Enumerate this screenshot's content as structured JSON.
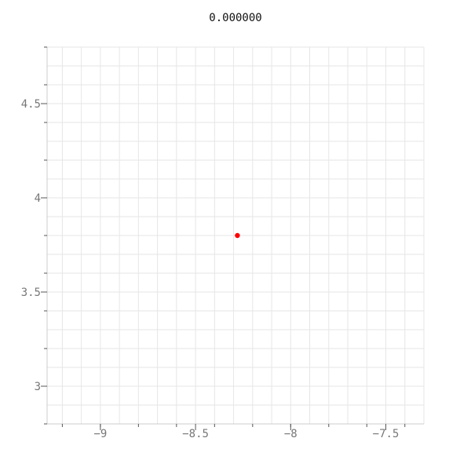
{
  "chart_data": {
    "type": "scatter",
    "title": "0.000000",
    "xlabel": "",
    "ylabel": "",
    "xlim": [
      -9.28,
      -7.3
    ],
    "ylim": [
      2.8,
      4.8
    ],
    "xticks": [
      -9,
      -8.5,
      -8,
      -7.5
    ],
    "xtick_labels": [
      "−9",
      "−8.5",
      "−8",
      "−7.5"
    ],
    "yticks": [
      3,
      3.5,
      4,
      4.5
    ],
    "ytick_labels": [
      "3",
      "3.5",
      "4",
      "4.5"
    ],
    "grid": true,
    "series": [
      {
        "color": "#ff0000",
        "points": [
          {
            "x": -8.28,
            "y": 3.8
          }
        ]
      }
    ]
  }
}
